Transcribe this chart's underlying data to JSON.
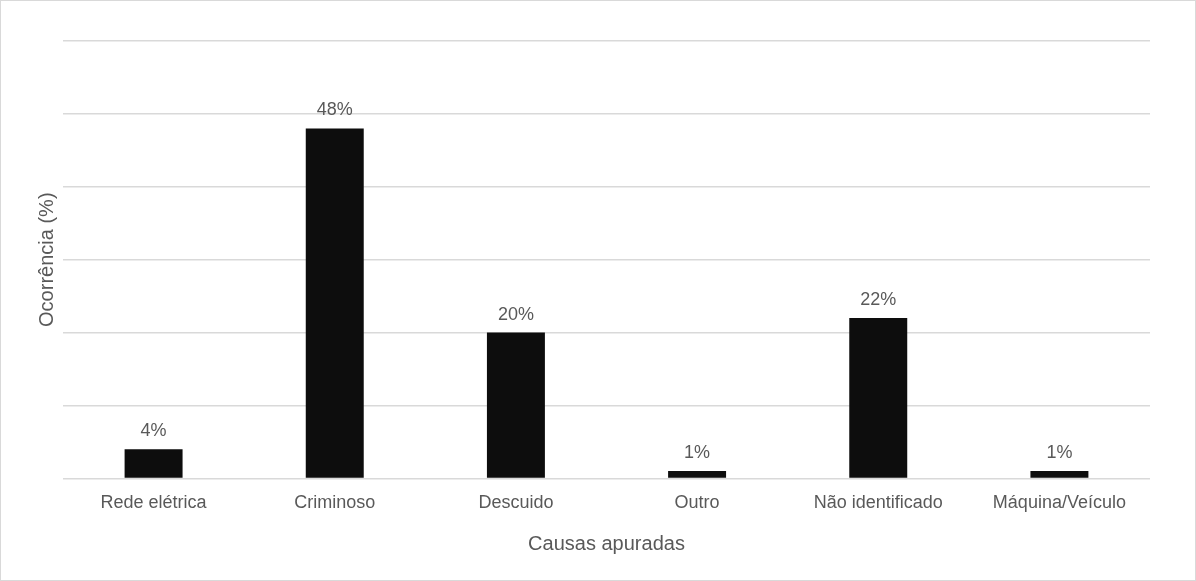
{
  "chart_data": {
    "type": "bar",
    "xlabel": "Causas apuradas",
    "ylabel": "Ocorrência (%)",
    "categories": [
      "Rede elétrica",
      "Criminoso",
      "Descuido",
      "Outro",
      "Não identificado",
      "Máquina/Veículo"
    ],
    "values": [
      4,
      48,
      20,
      1,
      22,
      1
    ],
    "value_labels": [
      "4%",
      "48%",
      "20%",
      "1%",
      "22%",
      "1%"
    ],
    "color": "#0d0d0d",
    "ylim": [
      0,
      60
    ],
    "yticks": [
      {
        "value": 0,
        "label": null
      },
      {
        "value": 10,
        "label": null
      },
      {
        "value": 20,
        "label": null
      },
      {
        "value": 30,
        "label": null
      },
      {
        "value": 40,
        "label": null
      },
      {
        "value": 50,
        "label": null
      },
      {
        "value": 60,
        "label": null
      }
    ],
    "tick_labels": "x",
    "grid": "y",
    "legend": false
  }
}
